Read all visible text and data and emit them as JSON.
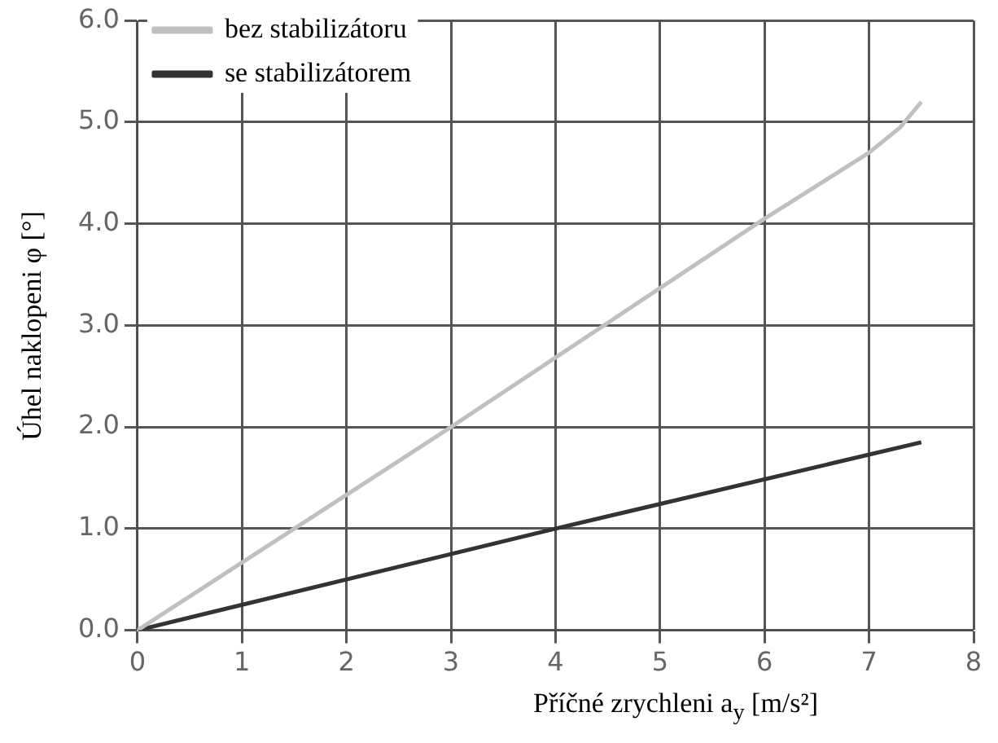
{
  "chart_data": {
    "type": "line",
    "xlabel": "Příčné zrychleni  a$_{y}$  [m/s²]",
    "ylabel": "Úhel naklopeni  φ [°]",
    "xlim": [
      0,
      8
    ],
    "xticks": [
      0,
      1,
      2,
      3,
      4,
      5,
      6,
      7,
      8
    ],
    "ylim": [
      0,
      6
    ],
    "yticks": [
      {
        "value": 0,
        "label": "0.0"
      },
      {
        "value": 1,
        "label": "1.0"
      },
      {
        "value": 2,
        "label": "2.0"
      },
      {
        "value": 3,
        "label": "3.0"
      },
      {
        "value": 4,
        "label": "4.0"
      },
      {
        "value": 5,
        "label": "5.0"
      },
      {
        "value": 6,
        "label": "6.0"
      }
    ],
    "grid": true,
    "legend": "top left",
    "marker": "none",
    "line_style": "solid",
    "series": [
      {
        "name": "bez stabilizátoru",
        "color": "#c0c0c0",
        "x": [
          0,
          3,
          6,
          7,
          7.3,
          7.5
        ],
        "values": [
          0,
          2.0,
          4.05,
          4.7,
          4.95,
          5.2
        ]
      },
      {
        "name": "se stabilizátorem",
        "color": "#333333",
        "x": [
          0,
          4,
          7.5
        ],
        "values": [
          0,
          1.0,
          1.85
        ]
      }
    ]
  }
}
